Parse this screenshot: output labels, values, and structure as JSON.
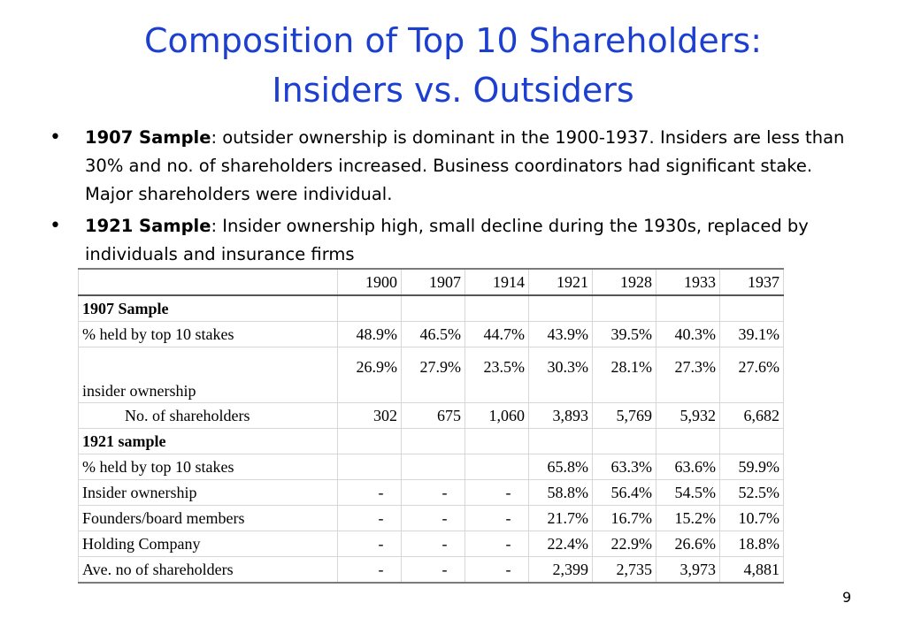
{
  "title_line1": "Composition of Top 10 Shareholders:",
  "title_line2": "Insiders vs. Outsiders",
  "bullets": [
    {
      "bold": "1907 Sample",
      "text": ": outsider ownership is dominant in the 1900-1937.  Insiders are less than 30% and no. of shareholders increased.  Business coordinators had significant stake. Major shareholders were individual."
    },
    {
      "bold": "1921 Sample",
      "text": ": Insider ownership high, small decline during the 1930s, replaced  by individuals and insurance firms"
    }
  ],
  "table": {
    "years": [
      "1900",
      "1907",
      "1914",
      "1921",
      "1928",
      "1933",
      "1937"
    ],
    "section1_label": "1907 Sample",
    "s1_rows": [
      {
        "label": "% held by top 10 stakes",
        "values": [
          "48.9%",
          "46.5%",
          "44.7%",
          "43.9%",
          "39.5%",
          "40.3%",
          "39.1%"
        ]
      },
      {
        "label": "insider ownership",
        "values": [
          "26.9%",
          "27.9%",
          "23.5%",
          "30.3%",
          "28.1%",
          "27.3%",
          "27.6%"
        ]
      },
      {
        "label": "No. of shareholders",
        "values": [
          "302",
          "675",
          "1,060",
          "3,893",
          "5,769",
          "5,932",
          "6,682"
        ]
      }
    ],
    "section2_label": "1921 sample",
    "s2_rows": [
      {
        "label": "% held by top 10 stakes",
        "values": [
          "",
          "",
          "",
          "65.8%",
          "63.3%",
          "63.6%",
          "59.9%"
        ]
      },
      {
        "label": "Insider ownership",
        "values": [
          "-",
          "-",
          "-",
          "58.8%",
          "56.4%",
          "54.5%",
          "52.5%"
        ]
      },
      {
        "label": "Founders/board members",
        "values": [
          "-",
          "-",
          "-",
          "21.7%",
          "16.7%",
          "15.2%",
          "10.7%"
        ]
      },
      {
        "label": "Holding Company",
        "values": [
          "-",
          "-",
          "-",
          "22.4%",
          "22.9%",
          "26.6%",
          "18.8%"
        ]
      },
      {
        "label": "Ave. no of shareholders",
        "values": [
          "-",
          "-",
          "-",
          "2,399",
          "2,735",
          "3,973",
          "4,881"
        ]
      }
    ]
  },
  "page_number": "9"
}
